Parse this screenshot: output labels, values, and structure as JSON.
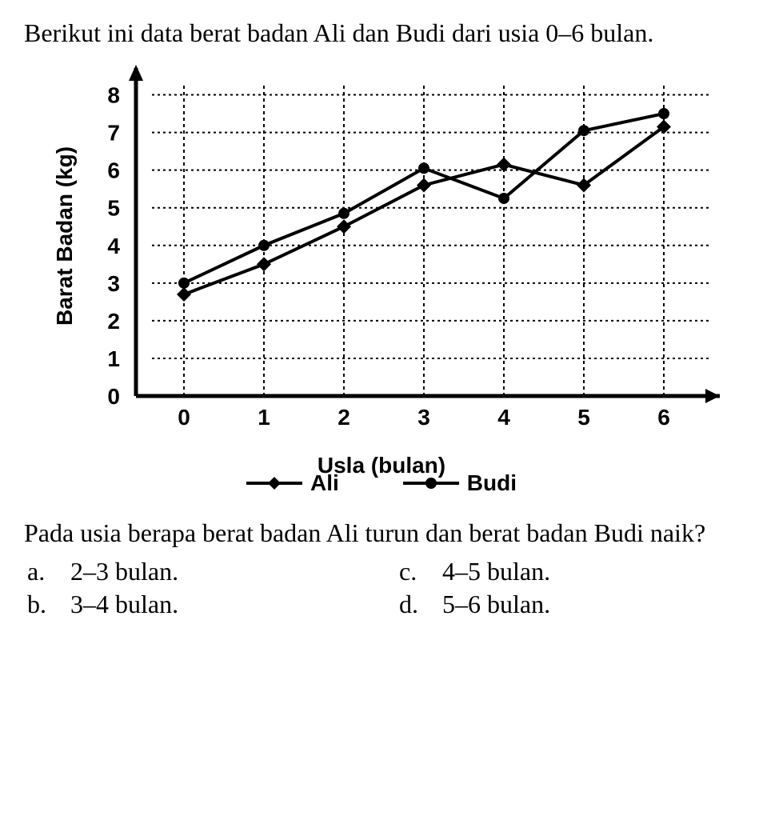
{
  "intro": "Berikut ini data berat badan Ali dan Budi dari usia 0–6 bulan.",
  "chart": {
    "type": "line",
    "ylabel": "Barat Badan (kg)",
    "xlabel": "Usla (bulan)",
    "label_fontsize": 28,
    "tick_fontsize": 28,
    "ylim": [
      0,
      8.5
    ],
    "xlim": [
      -0.6,
      6.6
    ],
    "yticks": [
      0,
      1,
      2,
      3,
      4,
      5,
      6,
      7,
      8
    ],
    "xticks": [
      0,
      1,
      2,
      3,
      4,
      5,
      6
    ],
    "grid_color": "#000000",
    "x_gridline_dash": "4,4",
    "y_gridline_dash": "3,4",
    "background_color": "#ffffff",
    "axis_color": "#000000",
    "axis_width": 5,
    "series": [
      {
        "name": "Ali",
        "marker": "diamond",
        "marker_size": 9,
        "line_width": 4,
        "color": "#000000",
        "x": [
          0,
          1,
          2,
          3,
          4,
          5,
          6
        ],
        "y": [
          2.7,
          3.5,
          4.5,
          5.6,
          6.15,
          5.6,
          7.15
        ]
      },
      {
        "name": "Budi",
        "marker": "circle",
        "marker_size": 7,
        "line_width": 4,
        "color": "#000000",
        "x": [
          0,
          1,
          2,
          3,
          4,
          5,
          6
        ],
        "y": [
          3.0,
          4.0,
          4.85,
          6.05,
          5.25,
          7.05,
          7.5
        ]
      }
    ]
  },
  "question": "Pada usia berapa berat badan Ali turun dan berat badan Budi naik?",
  "options": {
    "a": "2–3 bulan.",
    "b": "3–4 bulan.",
    "c": "4–5 bulan.",
    "d": "5–6 bulan."
  }
}
